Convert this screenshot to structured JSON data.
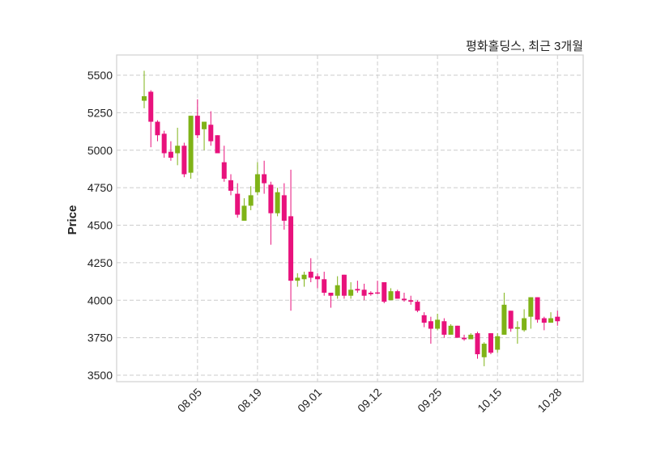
{
  "chart_data": {
    "type": "candlestick",
    "title": "평화홀딩스, 최근 3개월",
    "xlabel": "",
    "ylabel": "Price",
    "ylim": [
      3457,
      5635
    ],
    "yticks": [
      3500,
      3750,
      4000,
      4250,
      4500,
      4750,
      5000,
      5250,
      5500
    ],
    "xticks": [
      {
        "index": 8,
        "label": "08.05"
      },
      {
        "index": 17,
        "label": "08.19"
      },
      {
        "index": 26,
        "label": "09.01"
      },
      {
        "index": 35,
        "label": "09.12"
      },
      {
        "index": 44,
        "label": "09.25"
      },
      {
        "index": 53,
        "label": "10.15"
      },
      {
        "index": 62,
        "label": "10.28"
      }
    ],
    "grid": true,
    "colors": {
      "up": "#7fb317",
      "down": "#e8127c"
    },
    "ohlc": [
      [
        5330,
        5530,
        5280,
        5360
      ],
      [
        5390,
        5400,
        5020,
        5190
      ],
      [
        5190,
        5200,
        5060,
        5100
      ],
      [
        5110,
        5130,
        4950,
        4980
      ],
      [
        4990,
        5060,
        4930,
        4950
      ],
      [
        4980,
        5150,
        4900,
        5030
      ],
      [
        5030,
        5050,
        4820,
        4840
      ],
      [
        4850,
        5230,
        4810,
        5230
      ],
      [
        5230,
        5340,
        5080,
        5100
      ],
      [
        5140,
        5190,
        5000,
        5190
      ],
      [
        5170,
        5260,
        5030,
        5060
      ],
      [
        5100,
        5100,
        4980,
        4980
      ],
      [
        4920,
        5030,
        4790,
        4810
      ],
      [
        4800,
        4840,
        4700,
        4730
      ],
      [
        4710,
        4780,
        4550,
        4570
      ],
      [
        4530,
        4680,
        4530,
        4630
      ],
      [
        4630,
        4760,
        4600,
        4700
      ],
      [
        4720,
        4920,
        4700,
        4840
      ],
      [
        4840,
        4930,
        4710,
        4780
      ],
      [
        4770,
        4790,
        4370,
        4580
      ],
      [
        4580,
        4750,
        4560,
        4720
      ],
      [
        4700,
        4780,
        4470,
        4530
      ],
      [
        4560,
        4870,
        3930,
        4130
      ],
      [
        4130,
        4180,
        4090,
        4150
      ],
      [
        4140,
        4190,
        4090,
        4170
      ],
      [
        4190,
        4280,
        4120,
        4150
      ],
      [
        4160,
        4180,
        4080,
        4140
      ],
      [
        4140,
        4190,
        4030,
        4050
      ],
      [
        4050,
        4050,
        3950,
        4030
      ],
      [
        4030,
        4160,
        4010,
        4100
      ],
      [
        4170,
        4170,
        4010,
        4030
      ],
      [
        4030,
        4120,
        4010,
        4070
      ],
      [
        4075,
        4130,
        4050,
        4065
      ],
      [
        4070,
        4110,
        4000,
        4030
      ],
      [
        4050,
        4060,
        4030,
        4040
      ],
      [
        4052,
        4130,
        4040,
        4048
      ],
      [
        4120,
        4120,
        3980,
        3990
      ],
      [
        4000,
        4080,
        4000,
        4060
      ],
      [
        4060,
        4070,
        4010,
        4010
      ],
      [
        4010,
        4050,
        3990,
        4000
      ],
      [
        4000,
        4030,
        3970,
        3990
      ],
      [
        3990,
        4000,
        3920,
        3930
      ],
      [
        3900,
        3920,
        3820,
        3850
      ],
      [
        3860,
        3890,
        3710,
        3810
      ],
      [
        3810,
        3910,
        3800,
        3870
      ],
      [
        3860,
        3880,
        3750,
        3770
      ],
      [
        3770,
        3840,
        3770,
        3830
      ],
      [
        3830,
        3830,
        3750,
        3750
      ],
      [
        3750,
        3770,
        3730,
        3740
      ],
      [
        3740,
        3780,
        3740,
        3770
      ],
      [
        3780,
        3790,
        3610,
        3640
      ],
      [
        3620,
        3720,
        3560,
        3710
      ],
      [
        3780,
        3780,
        3640,
        3650
      ],
      [
        3670,
        3780,
        3650,
        3760
      ],
      [
        3770,
        4050,
        3770,
        3970
      ],
      [
        3930,
        3930,
        3790,
        3810
      ],
      [
        3810,
        3860,
        3710,
        3820
      ],
      [
        3800,
        3940,
        3790,
        3880
      ],
      [
        3890,
        4020,
        3810,
        4020
      ],
      [
        4020,
        4020,
        3850,
        3870
      ],
      [
        3880,
        3890,
        3800,
        3850
      ],
      [
        3850,
        3920,
        3850,
        3880
      ],
      [
        3890,
        3930,
        3830,
        3860
      ]
    ]
  }
}
